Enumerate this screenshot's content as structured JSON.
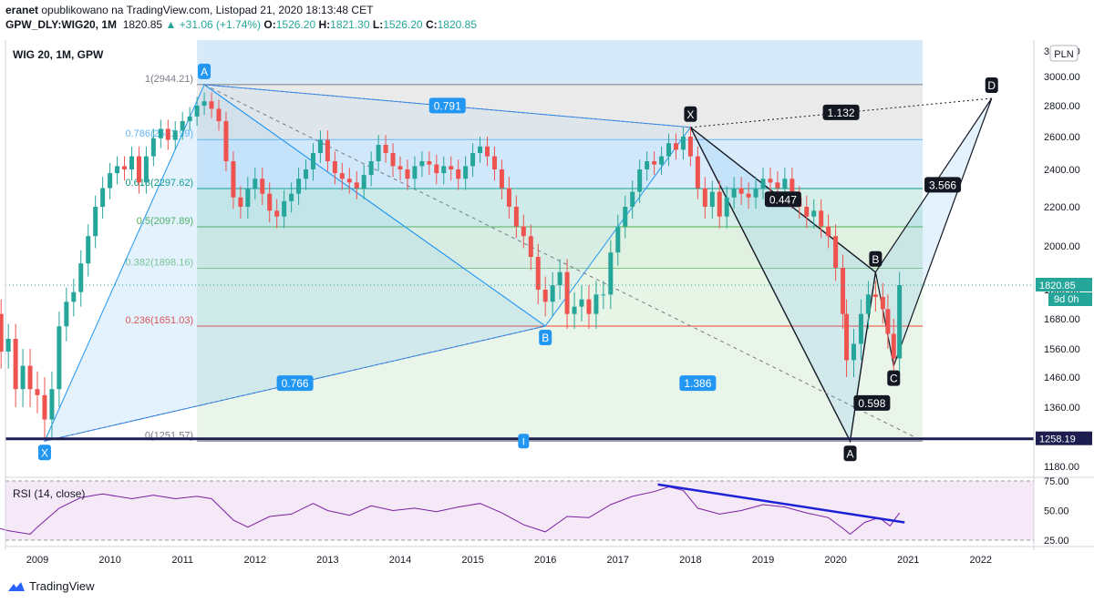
{
  "header": {
    "author": "eranet",
    "published": "opublikowano na TradingView.com, Listopad 21, 2020 18:13:48 CET",
    "symbol": "GPW_DLY:WIG20, 1M",
    "last": "1820.85",
    "change": "▲ +31.06 (+1.74%)",
    "o_label": "O:",
    "o_val": "1526.20",
    "h_label": "H:",
    "h_val": "1821.30",
    "l_label": "L:",
    "l_val": "1526.20",
    "c_label": "C:",
    "c_val": "1820.85"
  },
  "legend_title": "WIG 20, 1M, GPW",
  "currency": "PLN",
  "price_badge": "1820.85",
  "countdown": "9d 0h",
  "level_badge": "1258.19",
  "rsi_title": "RSI (14, close)",
  "footer": "TradingView",
  "colors": {
    "up": "#26a69a",
    "down": "#ef5350",
    "pattern": "#2196f3",
    "rsi_line": "#7b1fa2",
    "rsi_trend": "#1e22d6",
    "level": "#1d1d50"
  },
  "chart_data": {
    "type": "candlestick",
    "x_ticks": [
      "2009",
      "2010",
      "2011",
      "2012",
      "2013",
      "2014",
      "2015",
      "2016",
      "2017",
      "2018",
      "2019",
      "2020",
      "2021",
      "2022"
    ],
    "y_ticks": [
      "1180.00",
      "1260.00",
      "1360.00",
      "1460.00",
      "1560.00",
      "1680.00",
      "1800.00",
      "2000.00",
      "2200.00",
      "2400.00",
      "2600.00",
      "2800.00",
      "3000.00",
      "3200.00"
    ],
    "rsi_ticks": [
      "75.00",
      "50.00",
      "25.00"
    ],
    "fib_levels": [
      {
        "label": "1(2944.21)",
        "value": 2944.21
      },
      {
        "label": "0.786(2581.99)",
        "value": 2581.99
      },
      {
        "label": "0.618(2297.62)",
        "value": 2297.62
      },
      {
        "label": "0.5(2097.89)",
        "value": 2097.89
      },
      {
        "label": "0.382(1898.16)",
        "value": 1898.16
      },
      {
        "label": "0.236(1651.03)",
        "value": 1651.03
      },
      {
        "label": "0(1251.57)",
        "value": 1251.57
      }
    ],
    "pattern_points": [
      {
        "label": "X",
        "date": 2009.1,
        "value": 1251.57
      },
      {
        "label": "A",
        "date": 2011.3,
        "value": 2944.21
      },
      {
        "label": "B",
        "date": 2016.0,
        "value": 1651.03
      },
      {
        "label": "X",
        "date": 2018.0,
        "value": 2660
      },
      {
        "label": "A",
        "date": 2020.2,
        "value": 1251.57
      },
      {
        "label": "B",
        "date": 2020.55,
        "value": 1880
      },
      {
        "label": "C",
        "date": 2020.8,
        "value": 1500
      },
      {
        "label": "D",
        "date": 2022.15,
        "value": 2850
      }
    ],
    "ratios": [
      "0.791",
      "0.766",
      "1.386",
      "1.132",
      "0.447",
      "3.566",
      "0.598"
    ],
    "ratio_marker": "I",
    "candles": [
      [
        2008.0,
        2400,
        2200
      ],
      [
        2008.1,
        2150,
        1950
      ],
      [
        2008.2,
        1950,
        1850
      ],
      [
        2008.3,
        1850,
        1800
      ],
      [
        2008.4,
        1800,
        1700
      ],
      [
        2008.5,
        1700,
        1550
      ],
      [
        2008.6,
        1550,
        1600
      ],
      [
        2008.7,
        1600,
        1420
      ],
      [
        2008.8,
        1420,
        1500
      ],
      [
        2008.9,
        1500,
        1420
      ],
      [
        2009.0,
        1420,
        1400
      ],
      [
        2009.1,
        1400,
        1320
      ],
      [
        2009.2,
        1320,
        1420
      ],
      [
        2009.3,
        1420,
        1650
      ],
      [
        2009.4,
        1650,
        1750
      ],
      [
        2009.5,
        1750,
        1790
      ],
      [
        2009.6,
        1790,
        1920
      ],
      [
        2009.7,
        1920,
        2050
      ],
      [
        2009.8,
        2050,
        2200
      ],
      [
        2009.9,
        2200,
        2300
      ],
      [
        2010.0,
        2300,
        2380
      ],
      [
        2010.1,
        2380,
        2420
      ],
      [
        2010.2,
        2420,
        2400
      ],
      [
        2010.3,
        2400,
        2480
      ],
      [
        2010.4,
        2480,
        2330
      ],
      [
        2010.5,
        2330,
        2480
      ],
      [
        2010.6,
        2480,
        2590
      ],
      [
        2010.7,
        2590,
        2650
      ],
      [
        2010.8,
        2650,
        2580
      ],
      [
        2010.9,
        2580,
        2640
      ],
      [
        2011.0,
        2640,
        2700
      ],
      [
        2011.1,
        2700,
        2730
      ],
      [
        2011.2,
        2730,
        2800
      ],
      [
        2011.3,
        2800,
        2830
      ],
      [
        2011.4,
        2830,
        2780
      ],
      [
        2011.5,
        2780,
        2700
      ],
      [
        2011.6,
        2700,
        2450
      ],
      [
        2011.7,
        2450,
        2250
      ],
      [
        2011.8,
        2250,
        2200
      ],
      [
        2011.9,
        2200,
        2300
      ],
      [
        2012.0,
        2300,
        2350
      ],
      [
        2012.1,
        2350,
        2270
      ],
      [
        2012.2,
        2270,
        2180
      ],
      [
        2012.3,
        2180,
        2150
      ],
      [
        2012.4,
        2150,
        2230
      ],
      [
        2012.5,
        2230,
        2270
      ],
      [
        2012.6,
        2270,
        2350
      ],
      [
        2012.7,
        2350,
        2400
      ],
      [
        2012.8,
        2400,
        2500
      ],
      [
        2012.9,
        2500,
        2580
      ],
      [
        2013.0,
        2580,
        2450
      ],
      [
        2013.1,
        2450,
        2380
      ],
      [
        2013.2,
        2380,
        2350
      ],
      [
        2013.3,
        2350,
        2330
      ],
      [
        2013.4,
        2330,
        2300
      ],
      [
        2013.5,
        2300,
        2370
      ],
      [
        2013.6,
        2370,
        2450
      ],
      [
        2013.7,
        2450,
        2550
      ],
      [
        2013.8,
        2550,
        2500
      ],
      [
        2013.9,
        2500,
        2420
      ],
      [
        2014.0,
        2420,
        2400
      ],
      [
        2014.1,
        2400,
        2350
      ],
      [
        2014.2,
        2350,
        2420
      ],
      [
        2014.3,
        2420,
        2450
      ],
      [
        2014.4,
        2450,
        2430
      ],
      [
        2014.5,
        2430,
        2380
      ],
      [
        2014.6,
        2380,
        2420
      ],
      [
        2014.7,
        2420,
        2400
      ],
      [
        2014.8,
        2400,
        2350
      ],
      [
        2014.9,
        2350,
        2420
      ],
      [
        2015.0,
        2420,
        2500
      ],
      [
        2015.1,
        2500,
        2540
      ],
      [
        2015.2,
        2540,
        2480
      ],
      [
        2015.3,
        2480,
        2400
      ],
      [
        2015.4,
        2400,
        2300
      ],
      [
        2015.5,
        2300,
        2200
      ],
      [
        2015.6,
        2200,
        2100
      ],
      [
        2015.7,
        2100,
        2050
      ],
      [
        2015.8,
        2050,
        1950
      ],
      [
        2015.9,
        1950,
        1800
      ],
      [
        2016.0,
        1800,
        1750
      ],
      [
        2016.1,
        1750,
        1820
      ],
      [
        2016.2,
        1820,
        1880
      ],
      [
        2016.3,
        1880,
        1700
      ],
      [
        2016.4,
        1700,
        1730
      ],
      [
        2016.5,
        1730,
        1760
      ],
      [
        2016.6,
        1760,
        1700
      ],
      [
        2016.7,
        1700,
        1780
      ],
      [
        2016.8,
        1780,
        1780
      ],
      [
        2016.9,
        1780,
        1970
      ],
      [
        2017.0,
        1970,
        2100
      ],
      [
        2017.1,
        2100,
        2200
      ],
      [
        2017.2,
        2200,
        2280
      ],
      [
        2017.3,
        2280,
        2400
      ],
      [
        2017.4,
        2400,
        2450
      ],
      [
        2017.5,
        2450,
        2430
      ],
      [
        2017.6,
        2430,
        2480
      ],
      [
        2017.7,
        2480,
        2560
      ],
      [
        2017.8,
        2560,
        2520
      ],
      [
        2017.9,
        2520,
        2600
      ],
      [
        2018.0,
        2600,
        2480
      ],
      [
        2018.1,
        2480,
        2300
      ],
      [
        2018.2,
        2300,
        2200
      ],
      [
        2018.3,
        2200,
        2280
      ],
      [
        2018.4,
        2280,
        2150
      ],
      [
        2018.5,
        2150,
        2250
      ],
      [
        2018.6,
        2250,
        2300
      ],
      [
        2018.7,
        2300,
        2270
      ],
      [
        2018.8,
        2270,
        2250
      ],
      [
        2018.9,
        2250,
        2300
      ],
      [
        2019.0,
        2300,
        2350
      ],
      [
        2019.1,
        2350,
        2330
      ],
      [
        2019.2,
        2330,
        2300
      ],
      [
        2019.3,
        2300,
        2350
      ],
      [
        2019.4,
        2350,
        2250
      ],
      [
        2019.5,
        2250,
        2200
      ],
      [
        2019.6,
        2200,
        2150
      ],
      [
        2019.7,
        2150,
        2180
      ],
      [
        2019.8,
        2180,
        2100
      ],
      [
        2019.9,
        2100,
        2050
      ],
      [
        2020.0,
        2050,
        1900
      ],
      [
        2020.1,
        1900,
        1700
      ],
      [
        2020.15,
        1700,
        1520
      ],
      [
        2020.25,
        1520,
        1580
      ],
      [
        2020.35,
        1580,
        1700
      ],
      [
        2020.45,
        1700,
        1780
      ],
      [
        2020.55,
        1780,
        1770
      ],
      [
        2020.65,
        1770,
        1720
      ],
      [
        2020.72,
        1720,
        1620
      ],
      [
        2020.8,
        1620,
        1526
      ],
      [
        2020.88,
        1526,
        1820.85
      ]
    ],
    "rsi": [
      [
        2008.0,
        44
      ],
      [
        2008.3,
        38
      ],
      [
        2008.6,
        33
      ],
      [
        2008.9,
        30
      ],
      [
        2009.0,
        36
      ],
      [
        2009.3,
        52
      ],
      [
        2009.6,
        61
      ],
      [
        2009.9,
        64
      ],
      [
        2010.3,
        60
      ],
      [
        2010.6,
        63
      ],
      [
        2010.9,
        60
      ],
      [
        2011.2,
        62
      ],
      [
        2011.4,
        60
      ],
      [
        2011.7,
        42
      ],
      [
        2011.9,
        36
      ],
      [
        2012.2,
        45
      ],
      [
        2012.5,
        47
      ],
      [
        2012.8,
        56
      ],
      [
        2013.0,
        50
      ],
      [
        2013.3,
        46
      ],
      [
        2013.6,
        54
      ],
      [
        2013.9,
        50
      ],
      [
        2014.2,
        52
      ],
      [
        2014.5,
        49
      ],
      [
        2014.8,
        53
      ],
      [
        2015.1,
        56
      ],
      [
        2015.4,
        48
      ],
      [
        2015.7,
        38
      ],
      [
        2016.0,
        32
      ],
      [
        2016.3,
        45
      ],
      [
        2016.6,
        44
      ],
      [
        2016.9,
        55
      ],
      [
        2017.2,
        62
      ],
      [
        2017.5,
        66
      ],
      [
        2017.7,
        70
      ],
      [
        2017.9,
        67
      ],
      [
        2018.1,
        52
      ],
      [
        2018.4,
        47
      ],
      [
        2018.7,
        50
      ],
      [
        2019.0,
        55
      ],
      [
        2019.3,
        53
      ],
      [
        2019.6,
        48
      ],
      [
        2019.9,
        44
      ],
      [
        2020.1,
        35
      ],
      [
        2020.2,
        30
      ],
      [
        2020.4,
        40
      ],
      [
        2020.6,
        44
      ],
      [
        2020.75,
        37
      ],
      [
        2020.88,
        48
      ]
    ]
  }
}
